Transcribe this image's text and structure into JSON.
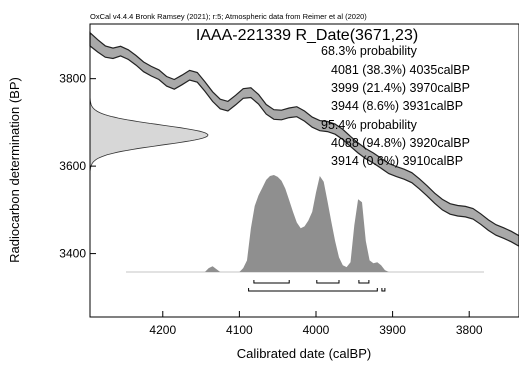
{
  "header_note": "OxCal v4.4.4 Bronk Ramsey (2021); r:5; Atmospheric data from Reimer et al (2020)",
  "chart_data": {
    "type": "area",
    "title": "IAAA-221339 R_Date(3671,23)",
    "xlabel": "Calibrated date (calBP)",
    "ylabel": "Radiocarbon determination (BP)",
    "xlim": [
      4295,
      3735
    ],
    "ylim": [
      3255,
      3925
    ],
    "x_reversed": true,
    "x_ticks": [
      "4200",
      "4100",
      "4000",
      "3900",
      "3800"
    ],
    "y_ticks": [
      "3800",
      "3600",
      "3400"
    ],
    "x_tick_values": [
      4200,
      4100,
      4000,
      3900,
      3800
    ],
    "y_tick_values": [
      3800,
      3600,
      3400
    ],
    "colors": {
      "band_fill": "#a9a9a9",
      "band_edge": "#222222",
      "density_fill": "#8f8f8f",
      "measurement_fill": "#d7d7d7"
    },
    "measurement": {
      "mean": 3671,
      "sigma": 23
    },
    "calibration_curve": {
      "x": [
        4295,
        4285,
        4275,
        4265,
        4255,
        4245,
        4235,
        4225,
        4215,
        4205,
        4195,
        4185,
        4175,
        4165,
        4155,
        4145,
        4135,
        4125,
        4115,
        4105,
        4095,
        4085,
        4075,
        4065,
        4055,
        4045,
        4035,
        4025,
        4015,
        4005,
        3995,
        3985,
        3975,
        3965,
        3955,
        3945,
        3935,
        3925,
        3915,
        3905,
        3895,
        3885,
        3875,
        3865,
        3855,
        3845,
        3835,
        3825,
        3815,
        3805,
        3795,
        3785,
        3775,
        3765,
        3755,
        3745,
        3735
      ],
      "upper": [
        3905,
        3889,
        3875,
        3870,
        3874,
        3866,
        3853,
        3838,
        3828,
        3820,
        3805,
        3798,
        3808,
        3819,
        3814,
        3793,
        3770,
        3753,
        3748,
        3762,
        3777,
        3779,
        3764,
        3741,
        3729,
        3728,
        3733,
        3736,
        3726,
        3712,
        3704,
        3702,
        3696,
        3684,
        3668,
        3653,
        3640,
        3630,
        3618,
        3606,
        3599,
        3593,
        3585,
        3571,
        3555,
        3538,
        3524,
        3514,
        3510,
        3508,
        3503,
        3491,
        3477,
        3466,
        3459,
        3451,
        3441
      ],
      "lower": [
        3875,
        3861,
        3849,
        3846,
        3852,
        3844,
        3831,
        3816,
        3806,
        3798,
        3783,
        3776,
        3786,
        3797,
        3792,
        3771,
        3748,
        3731,
        3726,
        3740,
        3755,
        3757,
        3742,
        3719,
        3707,
        3706,
        3711,
        3713,
        3703,
        3689,
        3681,
        3679,
        3673,
        3661,
        3645,
        3630,
        3617,
        3607,
        3595,
        3583,
        3576,
        3570,
        3562,
        3548,
        3532,
        3515,
        3500,
        3490,
        3486,
        3484,
        3479,
        3467,
        3453,
        3442,
        3435,
        3427,
        3417
      ]
    },
    "probability": [
      {
        "x": 4145,
        "v": 0.0
      },
      {
        "x": 4140,
        "v": 0.04
      },
      {
        "x": 4135,
        "v": 0.06
      },
      {
        "x": 4130,
        "v": 0.03
      },
      {
        "x": 4125,
        "v": 0.0
      },
      {
        "x": 4100,
        "v": 0.0
      },
      {
        "x": 4095,
        "v": 0.04
      },
      {
        "x": 4090,
        "v": 0.12
      },
      {
        "x": 4085,
        "v": 0.45
      },
      {
        "x": 4080,
        "v": 0.68
      },
      {
        "x": 4075,
        "v": 0.79
      },
      {
        "x": 4070,
        "v": 0.87
      },
      {
        "x": 4065,
        "v": 0.95
      },
      {
        "x": 4060,
        "v": 0.99
      },
      {
        "x": 4055,
        "v": 1.0
      },
      {
        "x": 4050,
        "v": 0.98
      },
      {
        "x": 4045,
        "v": 0.94
      },
      {
        "x": 4040,
        "v": 0.86
      },
      {
        "x": 4035,
        "v": 0.74
      },
      {
        "x": 4030,
        "v": 0.62
      },
      {
        "x": 4025,
        "v": 0.51
      },
      {
        "x": 4020,
        "v": 0.45
      },
      {
        "x": 4015,
        "v": 0.47
      },
      {
        "x": 4010,
        "v": 0.53
      },
      {
        "x": 4005,
        "v": 0.62
      },
      {
        "x": 4000,
        "v": 0.82
      },
      {
        "x": 3995,
        "v": 0.99
      },
      {
        "x": 3990,
        "v": 0.93
      },
      {
        "x": 3985,
        "v": 0.73
      },
      {
        "x": 3980,
        "v": 0.52
      },
      {
        "x": 3975,
        "v": 0.32
      },
      {
        "x": 3970,
        "v": 0.15
      },
      {
        "x": 3965,
        "v": 0.07
      },
      {
        "x": 3960,
        "v": 0.05
      },
      {
        "x": 3955,
        "v": 0.1
      },
      {
        "x": 3950,
        "v": 0.48
      },
      {
        "x": 3945,
        "v": 0.75
      },
      {
        "x": 3940,
        "v": 0.72
      },
      {
        "x": 3935,
        "v": 0.32
      },
      {
        "x": 3930,
        "v": 0.12
      },
      {
        "x": 3925,
        "v": 0.09
      },
      {
        "x": 3920,
        "v": 0.1
      },
      {
        "x": 3915,
        "v": 0.07
      },
      {
        "x": 3910,
        "v": 0.02
      },
      {
        "x": 3905,
        "v": 0.0
      }
    ],
    "ranges": {
      "p68": {
        "label": "68.3% probability",
        "items": [
          {
            "text": "4081 (38.3%) 4035calBP",
            "from": 4081,
            "to": 4035
          },
          {
            "text": "3999 (21.4%) 3970calBP",
            "from": 3999,
            "to": 3970
          },
          {
            "text": "3944 (8.6%) 3931calBP",
            "from": 3944,
            "to": 3931
          }
        ]
      },
      "p95": {
        "label": "95.4% probability",
        "items": [
          {
            "text": "4088 (94.8%) 3920calBP",
            "from": 4088,
            "to": 3920
          },
          {
            "text": "3914 (0.6%) 3910calBP",
            "from": 3914,
            "to": 3910
          }
        ]
      }
    }
  }
}
